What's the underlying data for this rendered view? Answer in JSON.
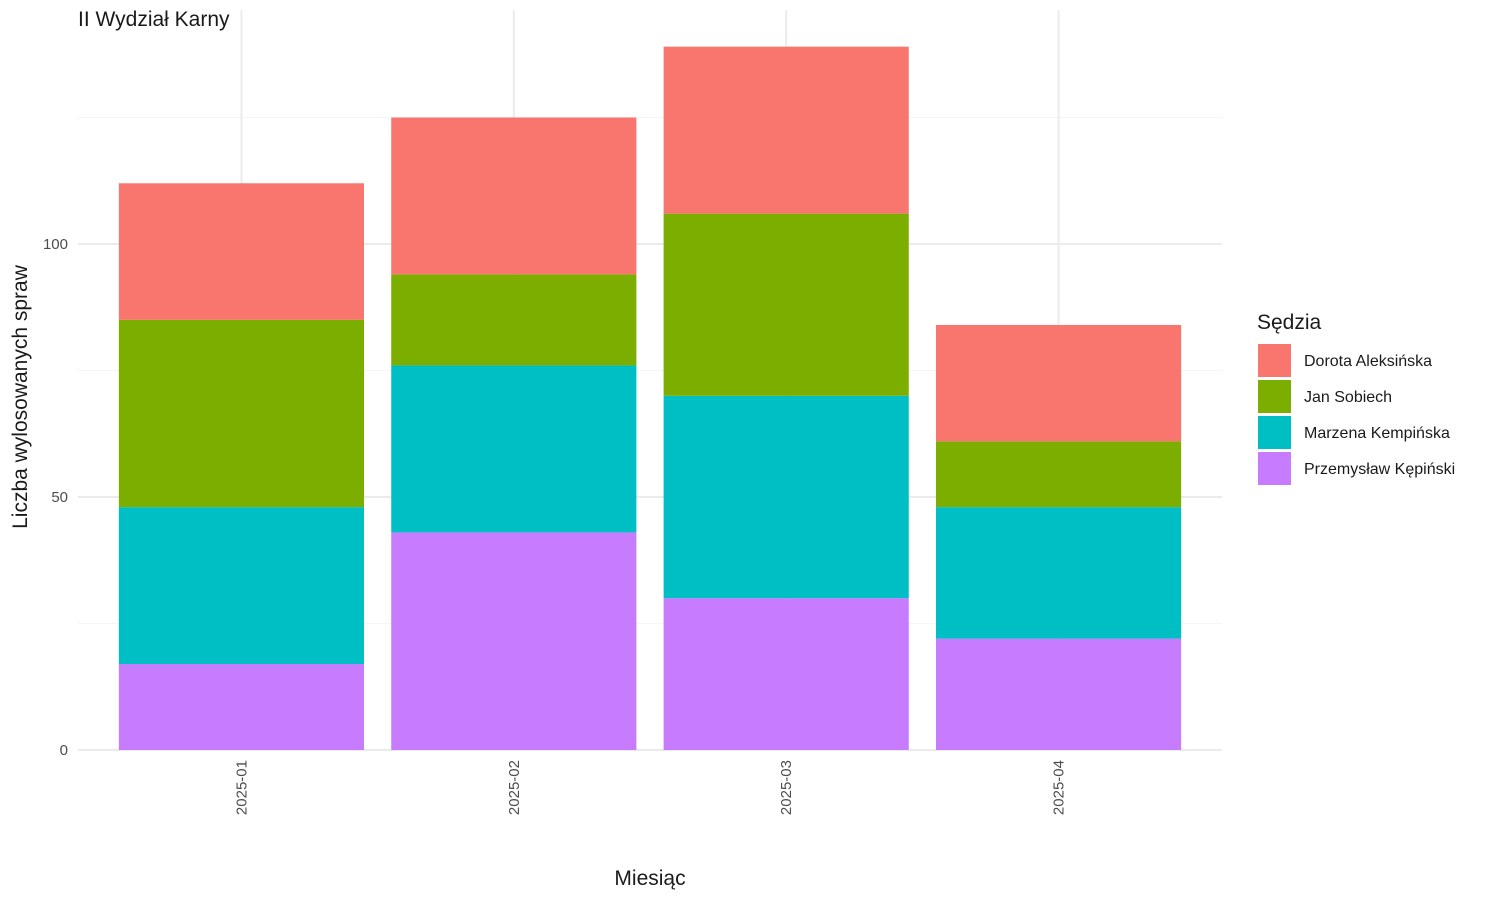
{
  "chart_data": {
    "type": "bar",
    "stacked": true,
    "title": "II Wydział Karny",
    "xlabel": "Miesiąc",
    "ylabel": "Liczba wylosowanych spraw",
    "categories": [
      "2025-01",
      "2025-02",
      "2025-03",
      "2025-04"
    ],
    "ylim": [
      0,
      145
    ],
    "yticks": [
      0,
      50,
      100
    ],
    "grid": true,
    "legend": {
      "title": "Sędzia",
      "position": "right"
    },
    "series": [
      {
        "name": "Przemysław Kępiński",
        "color": "#C77CFF",
        "values": [
          17,
          43,
          30,
          22
        ]
      },
      {
        "name": "Marzena Kempińska",
        "color": "#00BFC4",
        "values": [
          31,
          33,
          40,
          26
        ]
      },
      {
        "name": "Jan Sobiech",
        "color": "#7CAE00",
        "values": [
          37,
          18,
          36,
          13
        ]
      },
      {
        "name": "Dorota Aleksińska",
        "color": "#F8766D",
        "values": [
          27,
          31,
          33,
          23
        ]
      }
    ]
  }
}
